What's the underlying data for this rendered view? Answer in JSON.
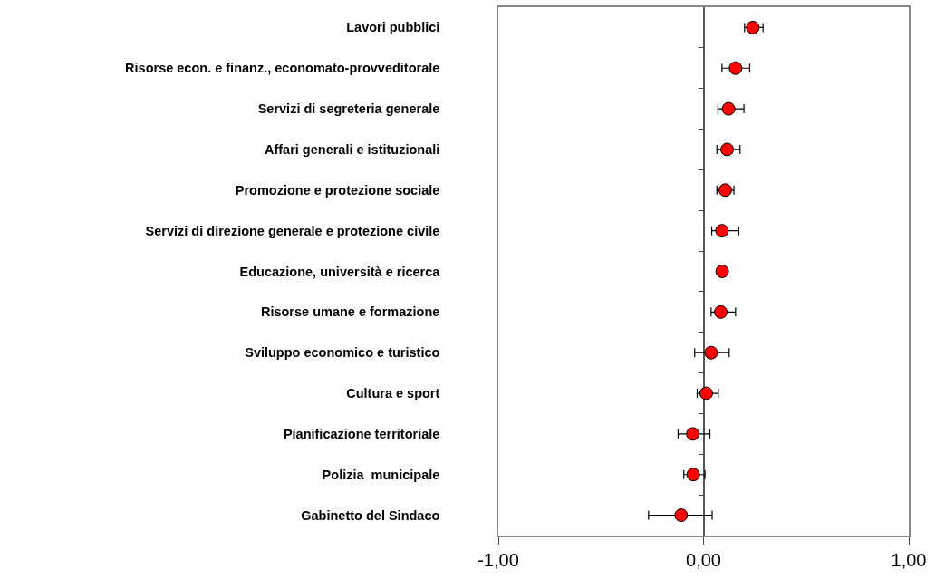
{
  "chart_data": {
    "type": "scatter",
    "orientation": "horizontal",
    "categories": [
      "Lavori pubblici",
      "Risorse econ. e finanz., economato-provveditorale",
      "Servizi di segreteria generale",
      "Affari generali e istituzionali",
      "Promozione e protezione sociale",
      "Servizi di direzione generale e protezione civile",
      "Educazione, università e ricerca",
      "Risorse umane e formazione",
      "Sviluppo economico e turistico",
      "Cultura e sport",
      "Pianificazione territoriale",
      "Polizia  municipale",
      "Gabinetto del Sindaco"
    ],
    "values": [
      0.24,
      0.156,
      0.122,
      0.115,
      0.106,
      0.09,
      0.091,
      0.084,
      0.037,
      0.013,
      -0.052,
      -0.05,
      -0.109
    ],
    "errors": [
      [
        0.2,
        0.29
      ],
      [
        0.09,
        0.225
      ],
      [
        0.07,
        0.197
      ],
      [
        0.065,
        0.178
      ],
      [
        0.065,
        0.148
      ],
      [
        0.04,
        0.172
      ],
      null,
      [
        0.037,
        0.156
      ],
      [
        -0.043,
        0.125
      ],
      [
        -0.031,
        0.072
      ],
      [
        -0.124,
        0.031
      ],
      [
        -0.096,
        0.007
      ],
      [
        -0.268,
        0.042
      ]
    ],
    "color": "#ff0000",
    "marker": "circle",
    "grid": "x",
    "xlim": [
      -1,
      1
    ],
    "xticks": [
      {
        "value": -1,
        "label": "-1,00"
      },
      {
        "value": 0,
        "label": "0,00"
      },
      {
        "value": 1,
        "label": "1,00"
      }
    ]
  }
}
